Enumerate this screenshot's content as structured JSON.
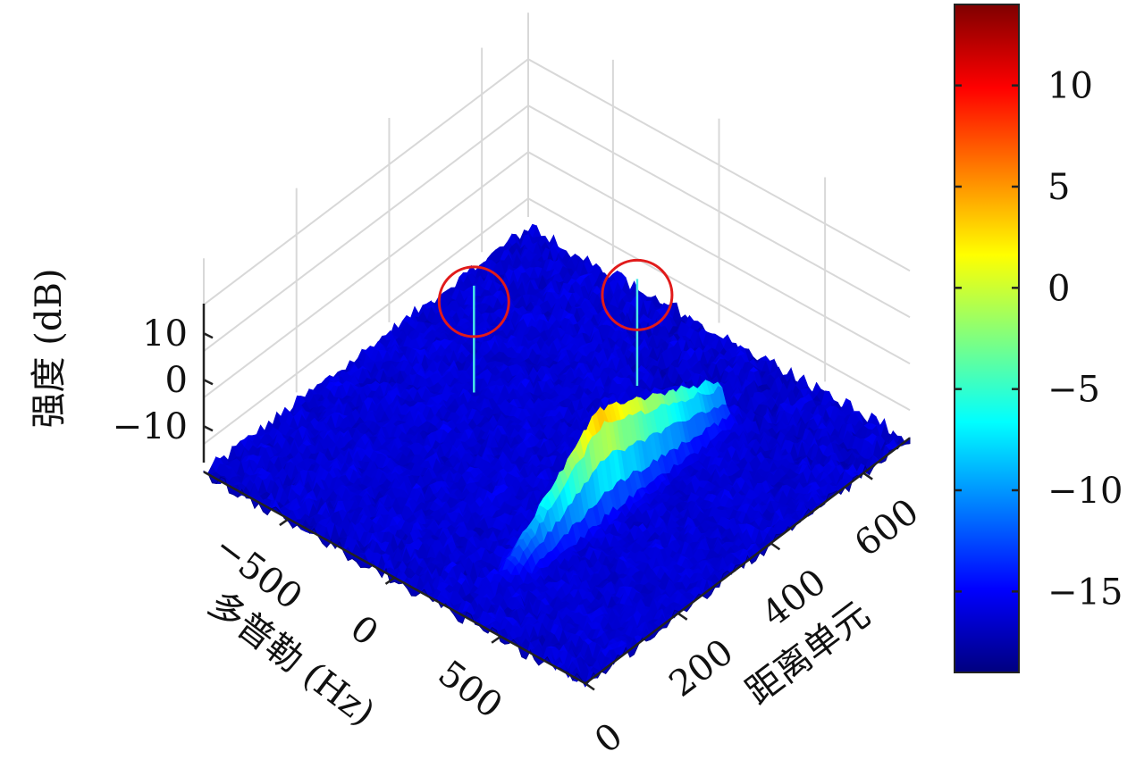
{
  "chart_data": {
    "type": "surface3d",
    "title": "",
    "z_label": "强度 (dB)",
    "x_label": "多普勒 (Hz)",
    "y_label": "距离单元",
    "x_ticks": [
      "−500",
      "0",
      "500"
    ],
    "x_tick_values": [
      -500,
      0,
      500
    ],
    "y_ticks": [
      "0",
      "200",
      "400",
      "600"
    ],
    "y_tick_values": [
      0,
      200,
      400,
      600
    ],
    "z_ticks": [
      "10",
      "0",
      "−10"
    ],
    "z_tick_values": [
      10,
      0,
      -10
    ],
    "xlim": [
      -900,
      900
    ],
    "ylim": [
      0,
      700
    ],
    "zlim": [
      -20,
      15
    ],
    "colormap": "jet",
    "colorbar": {
      "ticks": [
        "10",
        "5",
        "0",
        "−5",
        "−10",
        "−15"
      ],
      "values": [
        10,
        5,
        0,
        -5,
        -10,
        -15
      ],
      "range": [
        -19,
        14
      ]
    },
    "noise_floor_db": -17,
    "ridge": {
      "doppler_hz": 300,
      "range_start": 80,
      "range_end": 560,
      "peak_db": 5,
      "peak_range": 300
    },
    "spikes": [
      {
        "doppler_hz": -500,
        "range_cell": 400,
        "peak_db": 4
      },
      {
        "doppler_hz": -80,
        "range_cell": 560,
        "peak_db": 4
      }
    ],
    "grid": true,
    "annotations": [
      {
        "shape": "circle",
        "color": "#e11b1b",
        "target_spike": 0
      },
      {
        "shape": "circle",
        "color": "#e11b1b",
        "target_spike": 1
      }
    ]
  }
}
